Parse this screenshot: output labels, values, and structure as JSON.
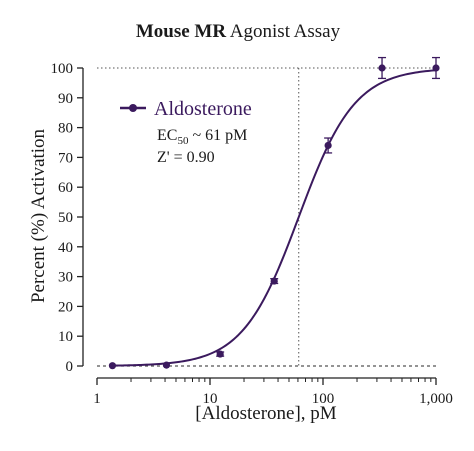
{
  "chart_data": {
    "type": "line",
    "title_bold": "Mouse MR",
    "title_rest": " Agonist Assay",
    "xlabel": "[Aldosterone], pM",
    "ylabel": "Percent (%) Activation",
    "x_scale": "log",
    "xlim": [
      1,
      1000
    ],
    "ylim": [
      0,
      100
    ],
    "x_ticks": [
      1,
      10,
      100,
      1000
    ],
    "x_tick_labels": [
      "1",
      "10",
      "100",
      "1,000"
    ],
    "y_ticks": [
      0,
      10,
      20,
      30,
      40,
      50,
      60,
      70,
      80,
      90,
      100
    ],
    "y_tick_labels": [
      "0",
      "10",
      "20",
      "30",
      "40",
      "50",
      "60",
      "70",
      "80",
      "90",
      "100"
    ],
    "grid": false,
    "legend_position": "top-left",
    "colors": {
      "series": "#3b1a5e",
      "reference": "#555555"
    },
    "series": [
      {
        "name": "Aldosterone",
        "x": [
          1.37,
          4.12,
          12.3,
          37.0,
          111,
          333,
          1000
        ],
        "y": [
          0.1,
          0.3,
          4.0,
          28.5,
          74.0,
          100.0,
          100.0
        ],
        "error": [
          0.3,
          0.4,
          0.7,
          0.8,
          2.5,
          3.5,
          3.5
        ]
      }
    ],
    "fit": {
      "model": "4PL sigmoid",
      "bottom": 0,
      "top": 100,
      "ec50": 61,
      "hill": 1.75
    },
    "reference_lines": {
      "y": [
        0,
        100
      ],
      "x": [
        61
      ]
    },
    "annotations": {
      "ec50_prefix": "EC",
      "ec50_sub": "50",
      "ec50_value": " ~ 61 pM",
      "z_prime": "Z' = 0.90"
    }
  }
}
